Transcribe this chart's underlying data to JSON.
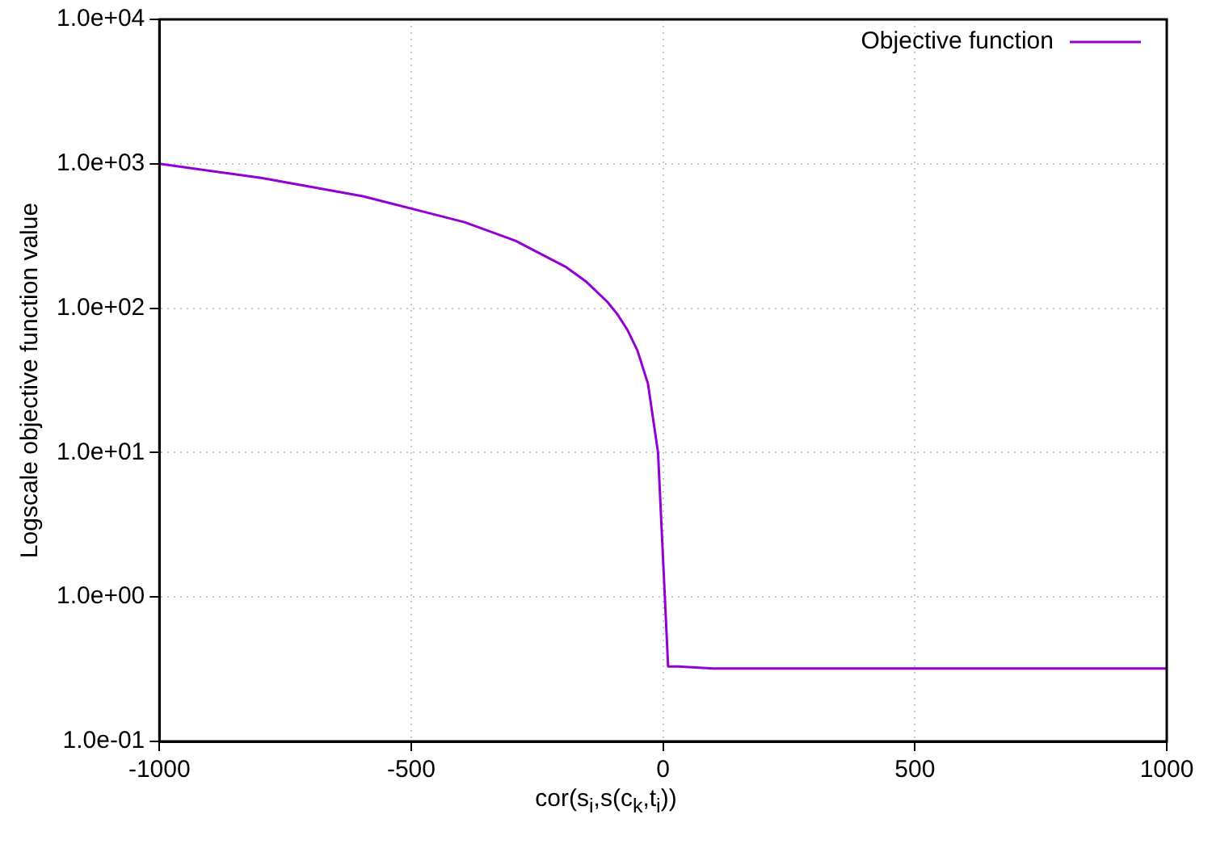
{
  "chart_data": {
    "type": "line",
    "xlabel": "cor(s$_{i}$,s(c$_{k}$,t$_{i}$))",
    "ylabel": "Logscale objective function value",
    "x": [
      -1000,
      -798,
      -596,
      -394,
      -293,
      -192,
      -152,
      -111,
      -91,
      -71,
      -51,
      -30,
      -10,
      10,
      30,
      100,
      500,
      1000
    ],
    "series": [
      {
        "name": "Objective function",
        "color": "#9400d3",
        "values": [
          1000,
          798,
          596,
          394,
          293,
          192,
          152,
          111,
          91,
          71,
          51,
          30,
          10,
          0.33,
          0.33,
          0.32,
          0.32,
          0.32
        ]
      }
    ],
    "xlim": [
      -1000,
      1000
    ],
    "xticks": [
      -1000,
      -500,
      0,
      500,
      1000
    ],
    "ylim": [
      0.1,
      10000
    ],
    "yticks": [
      {
        "value": 0.1,
        "label": "1.0e-01"
      },
      {
        "value": 1,
        "label": "1.0e+00"
      },
      {
        "value": 10,
        "label": "1.0e+01"
      },
      {
        "value": 100,
        "label": "1.0e+02"
      },
      {
        "value": 1000,
        "label": "1.0e+03"
      },
      {
        "value": 10000,
        "label": "1.0e+04"
      }
    ],
    "log": "y",
    "grid": true,
    "legend": "top right",
    "marker": "none",
    "line_style": "solid"
  }
}
